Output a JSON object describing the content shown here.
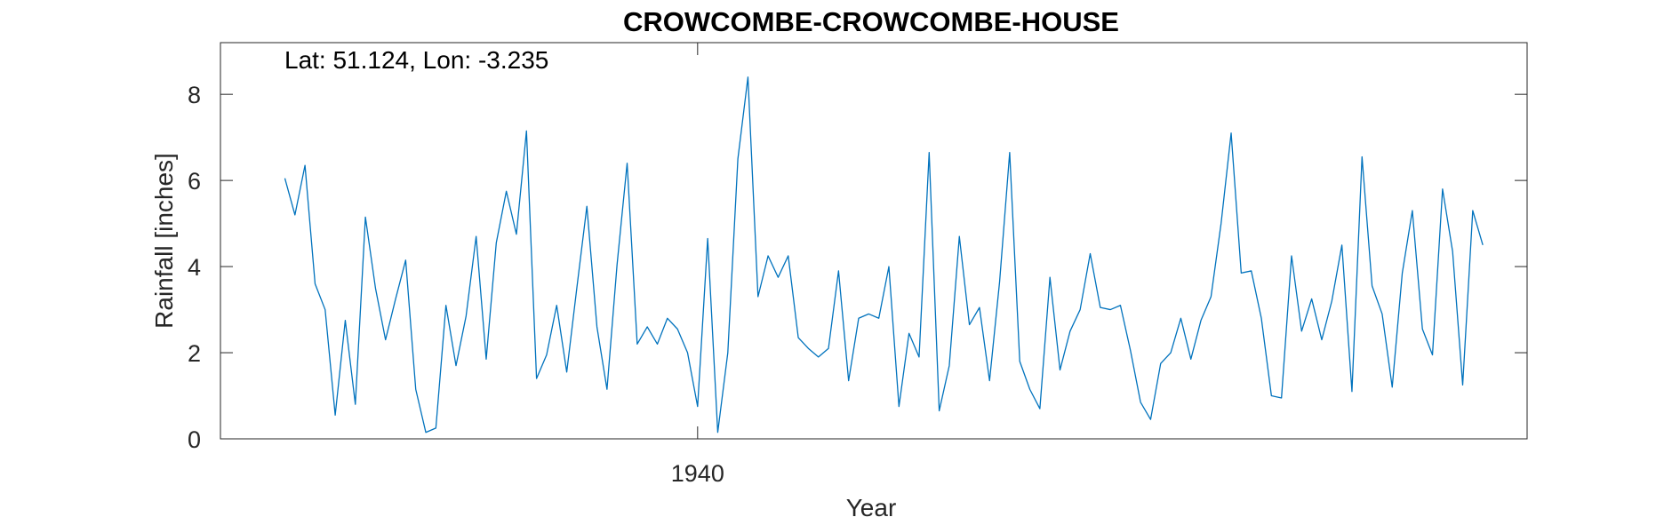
{
  "chart_data": {
    "type": "line",
    "title": "CROWCOMBE-CROWCOMBE-HOUSE",
    "xlabel": "Year",
    "ylabel": "Rainfall [inches]",
    "annotation": "Lat: 51.124, Lon: -3.235",
    "xlim": [
      1916.3,
      1981.2
    ],
    "ylim": [
      0,
      9.2
    ],
    "xticks": [
      1940
    ],
    "xtick_labels": [
      "1940"
    ],
    "yticks": [
      0,
      2,
      4,
      6,
      8
    ],
    "ytick_labels": [
      "0",
      "2",
      "4",
      "6",
      "8"
    ],
    "grid": false,
    "series_color": "#0072BD",
    "series": [
      {
        "x": [
          1919.5,
          1920.0,
          1920.5,
          1921.0,
          1921.5,
          1922.0,
          1922.5,
          1923.0,
          1923.5,
          1924.0,
          1924.5,
          1925.0,
          1925.5,
          1926.0,
          1926.5,
          1927.0,
          1927.5,
          1928.0,
          1928.5,
          1929.0,
          1929.5,
          1930.0,
          1930.5,
          1931.0,
          1931.5,
          1932.0,
          1932.5,
          1933.0,
          1933.5,
          1934.0,
          1934.5,
          1935.0,
          1935.5,
          1936.0,
          1936.5,
          1937.0,
          1937.5,
          1938.0,
          1938.5,
          1939.0,
          1939.5,
          1940.0,
          1940.5,
          1941.0,
          1941.5,
          1942.0,
          1942.5,
          1943.0,
          1943.5,
          1944.0,
          1944.5,
          1945.0,
          1945.5,
          1946.0,
          1946.5,
          1947.0,
          1947.5,
          1948.0,
          1948.5,
          1949.0,
          1949.5,
          1950.0,
          1950.5,
          1951.0,
          1951.5,
          1952.0,
          1952.5,
          1953.0,
          1953.5,
          1954.0,
          1954.5,
          1955.0,
          1955.5,
          1956.0,
          1956.5,
          1957.0,
          1957.5,
          1958.0,
          1958.5,
          1959.0,
          1959.5,
          1960.0,
          1960.5,
          1961.0,
          1961.5,
          1962.0,
          1962.5,
          1963.0,
          1963.5,
          1964.0,
          1964.5,
          1965.0,
          1965.5,
          1966.0,
          1966.5,
          1967.0,
          1967.5,
          1968.0,
          1968.5,
          1969.0,
          1969.5,
          1970.0,
          1970.5,
          1971.0,
          1971.5,
          1972.0,
          1972.5,
          1973.0,
          1973.5,
          1974.0,
          1974.5,
          1975.0,
          1975.5,
          1976.0,
          1976.5,
          1977.0,
          1977.5,
          1978.0,
          1978.5,
          1979.0
        ],
        "values": [
          6.05,
          5.2,
          6.35,
          3.6,
          3.0,
          0.55,
          2.75,
          0.8,
          5.15,
          3.5,
          2.3,
          3.25,
          4.15,
          1.15,
          0.15,
          0.25,
          3.1,
          1.7,
          2.85,
          4.7,
          1.85,
          4.55,
          5.75,
          4.75,
          7.15,
          1.4,
          1.95,
          3.1,
          1.55,
          3.5,
          5.4,
          2.6,
          1.15,
          4.05,
          6.4,
          2.2,
          2.6,
          2.2,
          2.8,
          2.55,
          2.0,
          0.75,
          4.65,
          0.15,
          2.0,
          6.5,
          8.4,
          3.3,
          4.25,
          3.75,
          4.25,
          2.35,
          2.1,
          1.9,
          2.1,
          3.9,
          1.35,
          2.8,
          2.9,
          2.8,
          4.0,
          0.75,
          2.45,
          1.9,
          6.65,
          0.65,
          1.7,
          4.7,
          2.65,
          3.05,
          1.35,
          3.65,
          6.65,
          1.8,
          1.15,
          0.7,
          3.75,
          1.6,
          2.5,
          3.0,
          4.3,
          3.05,
          3.0,
          3.1,
          2.05,
          0.85,
          0.45,
          1.75,
          2.0,
          2.8,
          1.85,
          2.75,
          3.3,
          5.0,
          7.1,
          3.85,
          3.9,
          2.8,
          1.0,
          0.95,
          4.25,
          2.5,
          3.25,
          2.3,
          3.2,
          4.5,
          1.1,
          6.55,
          3.55,
          2.9,
          1.2,
          3.85,
          5.3,
          2.55,
          1.95,
          5.8,
          4.35,
          1.25,
          5.3,
          4.5
        ]
      }
    ]
  }
}
